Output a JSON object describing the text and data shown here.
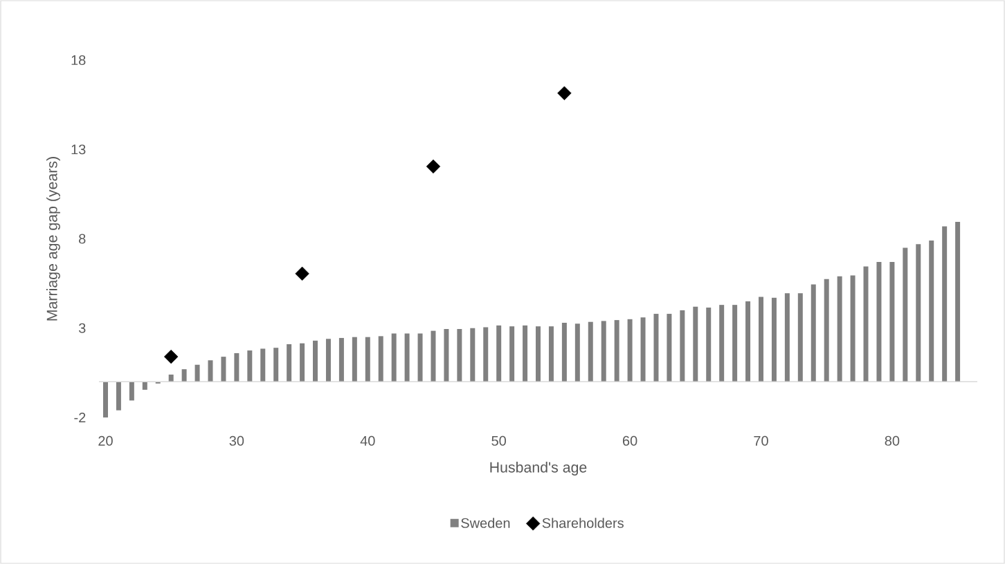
{
  "chart_data": {
    "type": "bar",
    "xlabel": "Husband's age",
    "ylabel": "Marriage age gap (years)",
    "x": [
      20,
      21,
      22,
      23,
      24,
      25,
      26,
      27,
      28,
      29,
      30,
      31,
      32,
      33,
      34,
      35,
      36,
      37,
      38,
      39,
      40,
      41,
      42,
      43,
      44,
      45,
      46,
      47,
      48,
      49,
      50,
      51,
      52,
      53,
      54,
      55,
      56,
      57,
      58,
      59,
      60,
      61,
      62,
      63,
      64,
      65,
      66,
      67,
      68,
      69,
      70,
      71,
      72,
      73,
      74,
      75,
      76,
      77,
      78,
      79,
      80,
      81,
      82,
      83,
      84,
      85
    ],
    "xlim": [
      19.5,
      86.5
    ],
    "xticks": [
      20,
      30,
      40,
      50,
      60,
      70,
      80
    ],
    "ylim": [
      -2,
      18
    ],
    "yticks": [
      -2,
      3,
      8,
      13,
      18
    ],
    "legend": "bottom",
    "series": [
      {
        "name": "Sweden",
        "color": "#808080",
        "values": [
          -2.0,
          -1.6,
          -1.05,
          -0.45,
          -0.1,
          0.4,
          0.7,
          0.95,
          1.2,
          1.4,
          1.6,
          1.75,
          1.85,
          1.9,
          2.1,
          2.15,
          2.3,
          2.4,
          2.45,
          2.5,
          2.5,
          2.55,
          2.7,
          2.7,
          2.7,
          2.85,
          2.95,
          2.95,
          3.0,
          3.05,
          3.15,
          3.1,
          3.15,
          3.1,
          3.1,
          3.3,
          3.25,
          3.35,
          3.4,
          3.45,
          3.5,
          3.6,
          3.8,
          3.8,
          4.0,
          4.2,
          4.15,
          4.3,
          4.3,
          4.5,
          4.75,
          4.7,
          4.95,
          4.95,
          5.45,
          5.75,
          5.9,
          5.95,
          6.45,
          6.7,
          6.7,
          7.5,
          7.7,
          7.9,
          8.7,
          8.95
        ]
      },
      {
        "name": "Shareholders",
        "type": "scatter",
        "marker": "diamond",
        "color": "#000000",
        "x": [
          25,
          35,
          45,
          55
        ],
        "values": [
          1.4,
          6.05,
          12.05,
          16.15
        ]
      }
    ]
  }
}
